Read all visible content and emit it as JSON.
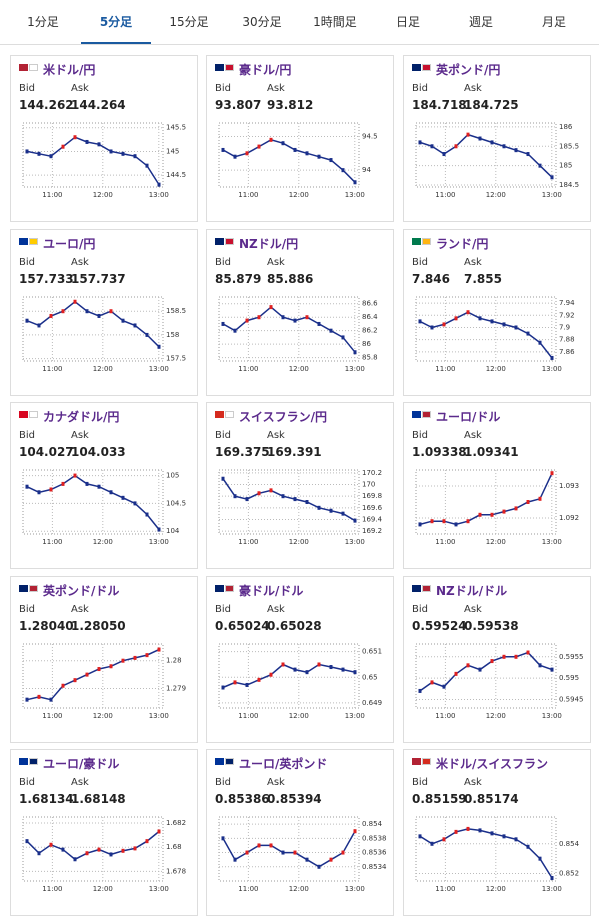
{
  "tabs": [
    "1分足",
    "5分足",
    "15分足",
    "30分足",
    "1時間足",
    "日足",
    "週足",
    "月足"
  ],
  "labels": {
    "bid": "Bid",
    "ask": "Ask"
  },
  "xticks": [
    "11:00",
    "12:00",
    "13:00"
  ],
  "cards": [
    {
      "title": "米ドル/円",
      "bid": "144.262",
      "ask": "144.264",
      "yticks": [
        145.5,
        145,
        144.5
      ],
      "ylim": [
        144.25,
        145.6
      ],
      "closes": [
        145.0,
        144.95,
        144.9,
        145.1,
        145.3,
        145.2,
        145.15,
        145.0,
        144.95,
        144.9,
        144.7,
        144.3
      ]
    },
    {
      "title": "豪ドル/円",
      "bid": "93.807",
      "ask": "93.812",
      "yticks": [
        94.5,
        94
      ],
      "ylim": [
        93.75,
        94.7
      ],
      "closes": [
        94.3,
        94.2,
        94.25,
        94.35,
        94.45,
        94.4,
        94.3,
        94.25,
        94.2,
        94.15,
        94.0,
        93.82
      ]
    },
    {
      "title": "英ポンド/円",
      "bid": "184.718",
      "ask": "184.725",
      "yticks": [
        186,
        185.5,
        185,
        184.5
      ],
      "ylim": [
        184.45,
        186.1
      ],
      "closes": [
        185.6,
        185.5,
        185.3,
        185.5,
        185.8,
        185.7,
        185.6,
        185.5,
        185.4,
        185.3,
        185.0,
        184.7
      ]
    },
    {
      "title": "ユーロ/円",
      "bid": "157.733",
      "ask": "157.737",
      "yticks": [
        158.5,
        158,
        157.5
      ],
      "ylim": [
        157.45,
        158.8
      ],
      "closes": [
        158.3,
        158.2,
        158.4,
        158.5,
        158.7,
        158.5,
        158.4,
        158.5,
        158.3,
        158.2,
        158.0,
        157.75
      ]
    },
    {
      "title": "NZドル/円",
      "bid": "85.879",
      "ask": "85.886",
      "yticks": [
        86.6,
        86.4,
        86.2,
        86,
        85.8
      ],
      "ylim": [
        85.75,
        86.7
      ],
      "closes": [
        86.3,
        86.2,
        86.35,
        86.4,
        86.55,
        86.4,
        86.35,
        86.4,
        86.3,
        86.2,
        86.1,
        85.88
      ]
    },
    {
      "title": "ランド/円",
      "bid": "7.846",
      "ask": "7.855",
      "yticks": [
        7.94,
        7.92,
        7.9,
        7.88,
        7.86
      ],
      "ylim": [
        7.845,
        7.95
      ],
      "closes": [
        7.91,
        7.9,
        7.905,
        7.915,
        7.925,
        7.915,
        7.91,
        7.905,
        7.9,
        7.89,
        7.875,
        7.85
      ]
    },
    {
      "title": "カナダドル/円",
      "bid": "104.027",
      "ask": "104.033",
      "yticks": [
        105,
        104.5,
        104
      ],
      "ylim": [
        103.95,
        105.1
      ],
      "closes": [
        104.8,
        104.7,
        104.75,
        104.85,
        105.0,
        104.85,
        104.8,
        104.7,
        104.6,
        104.5,
        104.3,
        104.03
      ]
    },
    {
      "title": "スイスフラン/円",
      "bid": "169.375",
      "ask": "169.391",
      "yticks": [
        170.2,
        170,
        169.8,
        169.6,
        169.4,
        169.2
      ],
      "ylim": [
        169.15,
        170.25
      ],
      "closes": [
        170.1,
        169.8,
        169.75,
        169.85,
        169.9,
        169.8,
        169.75,
        169.7,
        169.6,
        169.55,
        169.5,
        169.38
      ]
    },
    {
      "title": "ユーロ/ドル",
      "bid": "1.09338",
      "ask": "1.09341",
      "yticks": [
        1.093,
        1.092
      ],
      "ylim": [
        1.0915,
        1.0935
      ],
      "closes": [
        1.0918,
        1.0919,
        1.0919,
        1.0918,
        1.0919,
        1.0921,
        1.0921,
        1.0922,
        1.0923,
        1.0925,
        1.0926,
        1.0934
      ]
    },
    {
      "title": "英ポンド/ドル",
      "bid": "1.28040",
      "ask": "1.28050",
      "yticks": [
        1.28,
        1.279
      ],
      "ylim": [
        1.2783,
        1.2806
      ],
      "closes": [
        1.2786,
        1.2787,
        1.2786,
        1.2791,
        1.2793,
        1.2795,
        1.2797,
        1.2798,
        1.28,
        1.2801,
        1.2802,
        1.2804
      ]
    },
    {
      "title": "豪ドル/ドル",
      "bid": "0.65024",
      "ask": "0.65028",
      "yticks": [
        0.651,
        0.65,
        0.649
      ],
      "ylim": [
        0.6488,
        0.6513
      ],
      "closes": [
        0.6496,
        0.6498,
        0.6497,
        0.6499,
        0.6501,
        0.6505,
        0.6503,
        0.6502,
        0.6505,
        0.6504,
        0.6503,
        0.6502
      ]
    },
    {
      "title": "NZドル/ドル",
      "bid": "0.59524",
      "ask": "0.59538",
      "yticks": [
        0.5955,
        0.595,
        0.5945
      ],
      "ylim": [
        0.5943,
        0.5958
      ],
      "closes": [
        0.5947,
        0.5949,
        0.5948,
        0.5951,
        0.5953,
        0.5952,
        0.5954,
        0.5955,
        0.5955,
        0.5956,
        0.5953,
        0.5952
      ]
    },
    {
      "title": "ユーロ/豪ドル",
      "bid": "1.68134",
      "ask": "1.68148",
      "yticks": [
        1.682,
        1.68,
        1.678
      ],
      "ylim": [
        1.6772,
        1.6825
      ],
      "closes": [
        1.6805,
        1.6795,
        1.6802,
        1.6798,
        1.679,
        1.6795,
        1.6798,
        1.6794,
        1.6797,
        1.6799,
        1.6805,
        1.6813
      ]
    },
    {
      "title": "ユーロ/英ポンド",
      "bid": "0.85386",
      "ask": "0.85394",
      "yticks": [
        0.854,
        0.8538,
        0.8536,
        0.8534
      ],
      "ylim": [
        0.8532,
        0.8541
      ],
      "closes": [
        0.8538,
        0.8535,
        0.8536,
        0.8537,
        0.8537,
        0.8536,
        0.8536,
        0.8535,
        0.8534,
        0.8535,
        0.8536,
        0.8539
      ]
    },
    {
      "title": "米ドル/スイスフラン",
      "bid": "0.85159",
      "ask": "0.85174",
      "yticks": [
        0.854,
        0.852
      ],
      "ylim": [
        0.8515,
        0.8558
      ],
      "closes": [
        0.8545,
        0.854,
        0.8543,
        0.8548,
        0.855,
        0.8549,
        0.8547,
        0.8545,
        0.8543,
        0.8538,
        0.853,
        0.8517
      ]
    }
  ]
}
